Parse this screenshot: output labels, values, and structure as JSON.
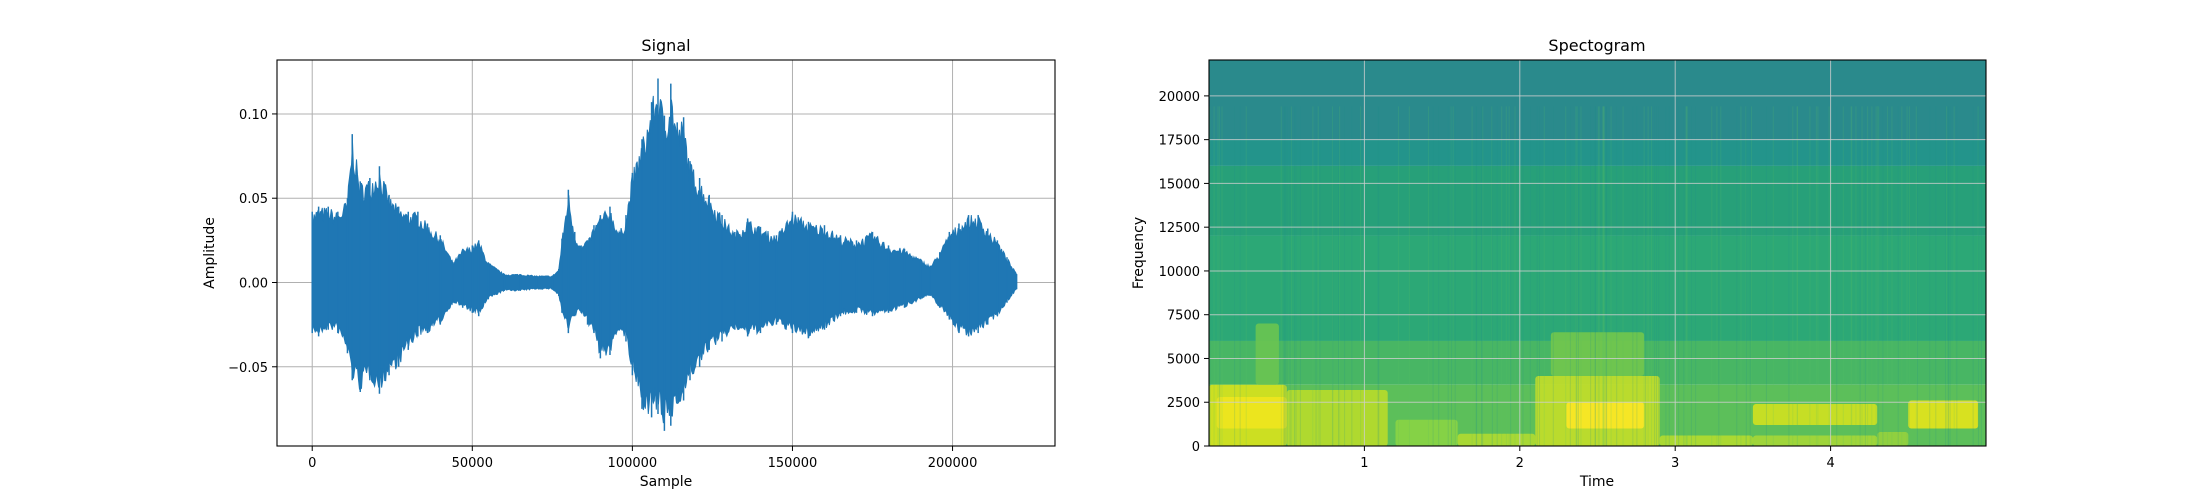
{
  "chart_data": [
    {
      "type": "line",
      "title": "Signal",
      "xlabel": "Sample",
      "ylabel": "Amplitude",
      "xlim": [
        -11000,
        232000
      ],
      "ylim": [
        -0.097,
        0.132
      ],
      "grid": true,
      "x_ticks": [
        0,
        50000,
        100000,
        150000,
        200000
      ],
      "x_tick_labels": [
        "0",
        "50000",
        "100000",
        "150000",
        "200000"
      ],
      "y_ticks": [
        -0.05,
        0.0,
        0.05,
        0.1
      ],
      "y_tick_labels": [
        "−0.05",
        "0.00",
        "0.05",
        "0.10"
      ],
      "color": "#1f77b4",
      "series": [
        {
          "x": [
            0,
            2000,
            5000,
            8000,
            11000,
            12500,
            15000,
            18000,
            21000,
            24000,
            27000,
            30000,
            33000,
            36000,
            40000,
            44000,
            47000,
            50000,
            52000,
            55000,
            60000,
            65000,
            70000,
            75000,
            77000,
            78000,
            80000,
            82000,
            84000,
            86000,
            88000,
            90000,
            93000,
            96000,
            98000,
            100000,
            103000,
            106000,
            108000,
            110000,
            112000,
            114000,
            116000,
            118000,
            121000,
            124000,
            128000,
            132000,
            136000,
            140000,
            145000,
            150000,
            155000,
            160000,
            165000,
            170000,
            175000,
            180000,
            185000,
            190000,
            193000,
            196000,
            199000,
            202000,
            205000,
            208000,
            211000,
            214000,
            217000,
            220000
          ],
          "upper": [
            0.042,
            0.045,
            0.045,
            0.042,
            0.05,
            0.088,
            0.06,
            0.062,
            0.069,
            0.052,
            0.045,
            0.042,
            0.042,
            0.035,
            0.028,
            0.012,
            0.02,
            0.022,
            0.025,
            0.012,
            0.005,
            0.005,
            0.004,
            0.004,
            0.008,
            0.026,
            0.055,
            0.03,
            0.022,
            0.025,
            0.034,
            0.04,
            0.045,
            0.03,
            0.04,
            0.065,
            0.085,
            0.107,
            0.121,
            0.099,
            0.118,
            0.095,
            0.098,
            0.072,
            0.062,
            0.052,
            0.04,
            0.03,
            0.038,
            0.033,
            0.028,
            0.042,
            0.036,
            0.034,
            0.028,
            0.025,
            0.03,
            0.022,
            0.02,
            0.014,
            0.01,
            0.018,
            0.03,
            0.035,
            0.04,
            0.04,
            0.032,
            0.025,
            0.015,
            0.005
          ],
          "lower": [
            -0.03,
            -0.032,
            -0.028,
            -0.03,
            -0.042,
            -0.058,
            -0.065,
            -0.058,
            -0.066,
            -0.055,
            -0.05,
            -0.04,
            -0.032,
            -0.03,
            -0.025,
            -0.012,
            -0.015,
            -0.018,
            -0.02,
            -0.01,
            -0.005,
            -0.005,
            -0.004,
            -0.004,
            -0.008,
            -0.018,
            -0.03,
            -0.02,
            -0.018,
            -0.025,
            -0.03,
            -0.045,
            -0.043,
            -0.028,
            -0.035,
            -0.055,
            -0.075,
            -0.08,
            -0.078,
            -0.088,
            -0.085,
            -0.072,
            -0.07,
            -0.058,
            -0.05,
            -0.04,
            -0.035,
            -0.028,
            -0.032,
            -0.03,
            -0.025,
            -0.03,
            -0.033,
            -0.028,
            -0.02,
            -0.018,
            -0.02,
            -0.018,
            -0.015,
            -0.01,
            -0.008,
            -0.015,
            -0.022,
            -0.03,
            -0.032,
            -0.03,
            -0.025,
            -0.02,
            -0.012,
            -0.004
          ]
        }
      ]
    },
    {
      "type": "heatmap",
      "title": "Spectogram",
      "xlabel": "Time",
      "ylabel": "Frequency",
      "xlim": [
        0,
        5.0
      ],
      "ylim": [
        0,
        22050
      ],
      "grid": true,
      "x_ticks": [
        1,
        2,
        3,
        4
      ],
      "x_tick_labels": [
        "1",
        "2",
        "3",
        "4"
      ],
      "y_ticks": [
        0,
        2500,
        5000,
        7500,
        10000,
        12500,
        15000,
        17500,
        20000
      ],
      "y_tick_labels": [
        "0",
        "2500",
        "5000",
        "7500",
        "10000",
        "12500",
        "15000",
        "17500",
        "20000"
      ],
      "colormap": "viridis",
      "bands": [
        {
          "fmin": 17500,
          "fmax": 22050,
          "color": "#2a8a8c"
        },
        {
          "fmin": 16000,
          "fmax": 17500,
          "color": "#23948b"
        },
        {
          "fmin": 12000,
          "fmax": 16000,
          "color": "#27a079"
        },
        {
          "fmin": 6000,
          "fmax": 12000,
          "color": "#2ca876"
        },
        {
          "fmin": 3500,
          "fmax": 6000,
          "color": "#48b664"
        },
        {
          "fmin": 0,
          "fmax": 3500,
          "color": "#5cbf5a"
        }
      ],
      "hot_regions": [
        {
          "t0": 0.0,
          "t1": 0.5,
          "f0": 0,
          "f1": 3500,
          "color": "#d8e21c"
        },
        {
          "t0": 0.05,
          "t1": 0.5,
          "f0": 1000,
          "f1": 2800,
          "color": "#f0e51e"
        },
        {
          "t0": 0.5,
          "t1": 1.15,
          "f0": 0,
          "f1": 3200,
          "color": "#b8dc2a"
        },
        {
          "t0": 0.3,
          "t1": 0.45,
          "f0": 3500,
          "f1": 7000,
          "color": "#6ac451"
        },
        {
          "t0": 1.2,
          "t1": 1.6,
          "f0": 0,
          "f1": 1500,
          "color": "#8ad444"
        },
        {
          "t0": 1.6,
          "t1": 2.1,
          "f0": 0,
          "f1": 700,
          "color": "#b0da30"
        },
        {
          "t0": 2.1,
          "t1": 2.9,
          "f0": 0,
          "f1": 4000,
          "color": "#c4de28"
        },
        {
          "t0": 2.3,
          "t1": 2.8,
          "f0": 1000,
          "f1": 2500,
          "color": "#fde725"
        },
        {
          "t0": 2.2,
          "t1": 2.8,
          "f0": 4000,
          "f1": 6500,
          "color": "#72c64c"
        },
        {
          "t0": 2.9,
          "t1": 3.5,
          "f0": 0,
          "f1": 600,
          "color": "#b4dc2e"
        },
        {
          "t0": 3.5,
          "t1": 4.3,
          "f0": 1200,
          "f1": 2400,
          "color": "#d2e11f"
        },
        {
          "t0": 3.5,
          "t1": 4.3,
          "f0": 0,
          "f1": 600,
          "color": "#a6d736"
        },
        {
          "t0": 4.5,
          "t1": 4.95,
          "f0": 1000,
          "f1": 2600,
          "color": "#e6e419"
        },
        {
          "t0": 4.3,
          "t1": 4.5,
          "f0": 0,
          "f1": 800,
          "color": "#96d23c"
        }
      ]
    }
  ]
}
